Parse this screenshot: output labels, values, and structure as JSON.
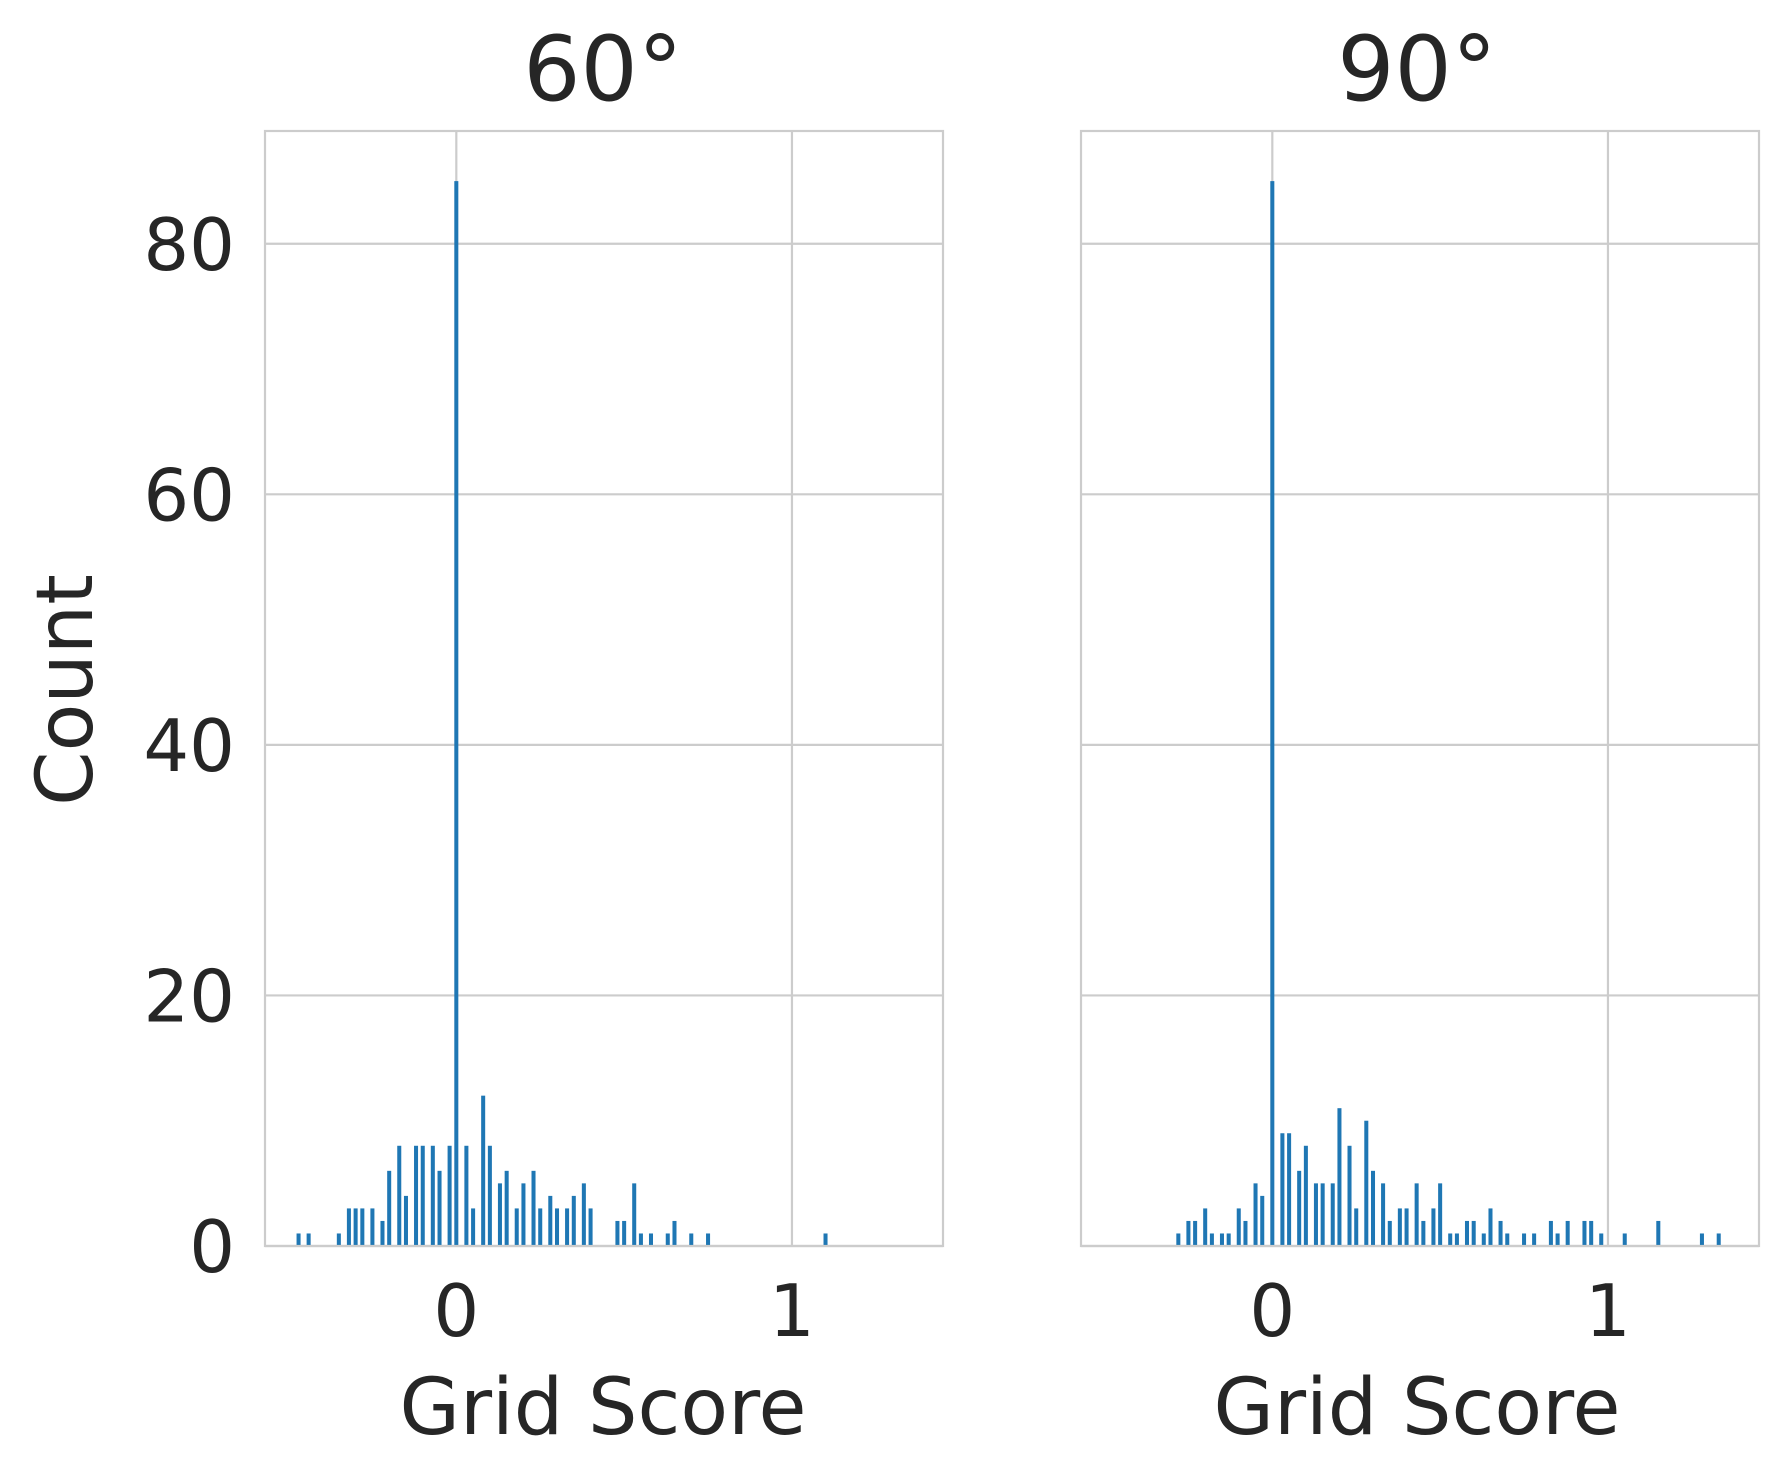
{
  "chart_data": [
    {
      "type": "bar",
      "title": "60°",
      "xlabel": "Grid Score",
      "ylabel": "Count",
      "xlim": [
        -0.57,
        1.45
      ],
      "ylim": [
        0,
        89
      ],
      "xticks": [
        0,
        1
      ],
      "xtick_labels": [
        "0",
        "1"
      ],
      "yticks": [
        0,
        20,
        40,
        60,
        80
      ],
      "ytick_labels": [
        "0",
        "20",
        "40",
        "60",
        "80"
      ],
      "grid": true,
      "bar_width": 0.012,
      "color": "#1f77b4",
      "x": [
        -0.47,
        -0.44,
        -0.35,
        -0.32,
        -0.3,
        -0.28,
        -0.25,
        -0.22,
        -0.2,
        -0.17,
        -0.15,
        -0.12,
        -0.1,
        -0.07,
        -0.05,
        -0.02,
        0.0,
        0.03,
        0.05,
        0.08,
        0.1,
        0.13,
        0.15,
        0.18,
        0.2,
        0.23,
        0.25,
        0.28,
        0.3,
        0.33,
        0.35,
        0.38,
        0.4,
        0.48,
        0.5,
        0.53,
        0.55,
        0.58,
        0.63,
        0.65,
        0.7,
        0.75,
        1.1
      ],
      "values": [
        1,
        1,
        1,
        3,
        3,
        3,
        3,
        2,
        6,
        8,
        4,
        8,
        8,
        8,
        6,
        8,
        85,
        8,
        3,
        12,
        8,
        5,
        6,
        3,
        5,
        6,
        3,
        4,
        3,
        3,
        4,
        5,
        3,
        2,
        2,
        5,
        1,
        1,
        1,
        2,
        1,
        1,
        1
      ]
    },
    {
      "type": "bar",
      "title": "90°",
      "xlabel": "Grid Score",
      "ylabel": "",
      "xlim": [
        -0.57,
        1.45
      ],
      "ylim": [
        0,
        89
      ],
      "xticks": [
        0,
        1
      ],
      "xtick_labels": [
        "0",
        "1"
      ],
      "yticks": [
        0,
        20,
        40,
        60,
        80
      ],
      "grid": true,
      "bar_width": 0.012,
      "color": "#1f77b4",
      "x": [
        -0.28,
        -0.25,
        -0.23,
        -0.2,
        -0.18,
        -0.15,
        -0.13,
        -0.1,
        -0.08,
        -0.05,
        -0.03,
        0.0,
        0.03,
        0.05,
        0.08,
        0.1,
        0.13,
        0.15,
        0.18,
        0.2,
        0.23,
        0.25,
        0.28,
        0.3,
        0.33,
        0.35,
        0.38,
        0.4,
        0.43,
        0.45,
        0.48,
        0.5,
        0.53,
        0.55,
        0.58,
        0.6,
        0.63,
        0.65,
        0.68,
        0.7,
        0.75,
        0.78,
        0.83,
        0.85,
        0.88,
        0.93,
        0.95,
        0.98,
        1.05,
        1.15,
        1.28,
        1.33
      ],
      "values": [
        1,
        2,
        2,
        3,
        1,
        1,
        1,
        3,
        2,
        5,
        4,
        85,
        9,
        9,
        6,
        8,
        5,
        5,
        5,
        11,
        8,
        3,
        10,
        6,
        5,
        2,
        3,
        3,
        5,
        2,
        3,
        5,
        1,
        1,
        2,
        2,
        1,
        3,
        2,
        1,
        1,
        1,
        2,
        1,
        2,
        2,
        2,
        1,
        1,
        2,
        1,
        1
      ]
    }
  ]
}
